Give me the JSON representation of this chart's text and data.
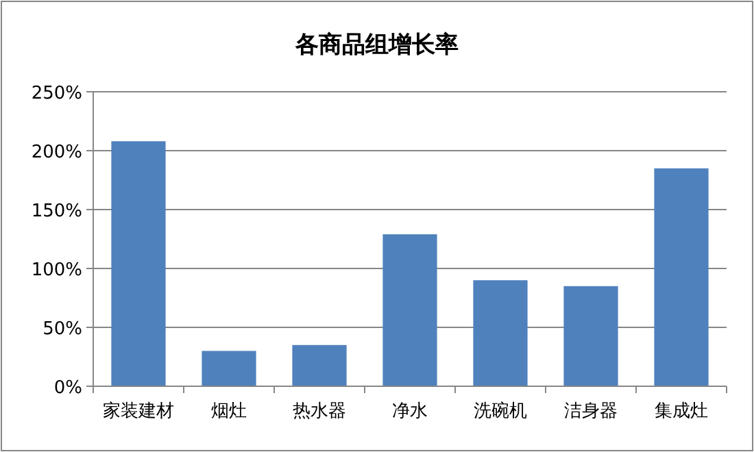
{
  "chart_data": {
    "type": "bar",
    "title": "各商品组增长率",
    "categories": [
      "家装建材",
      "烟灶",
      "热水器",
      "净水",
      "洗碗机",
      "洁身器",
      "集成灶"
    ],
    "values": [
      208,
      30,
      35,
      129,
      90,
      85,
      185
    ],
    "color": "#4f81bd",
    "ylim": [
      0,
      250
    ],
    "yticks": [
      {
        "value": 0,
        "label": "0%"
      },
      {
        "value": 50,
        "label": "50%"
      },
      {
        "value": 100,
        "label": "100%"
      },
      {
        "value": 150,
        "label": "150%"
      },
      {
        "value": 200,
        "label": "200%"
      },
      {
        "value": 250,
        "label": "250%"
      }
    ],
    "grid": "y"
  }
}
